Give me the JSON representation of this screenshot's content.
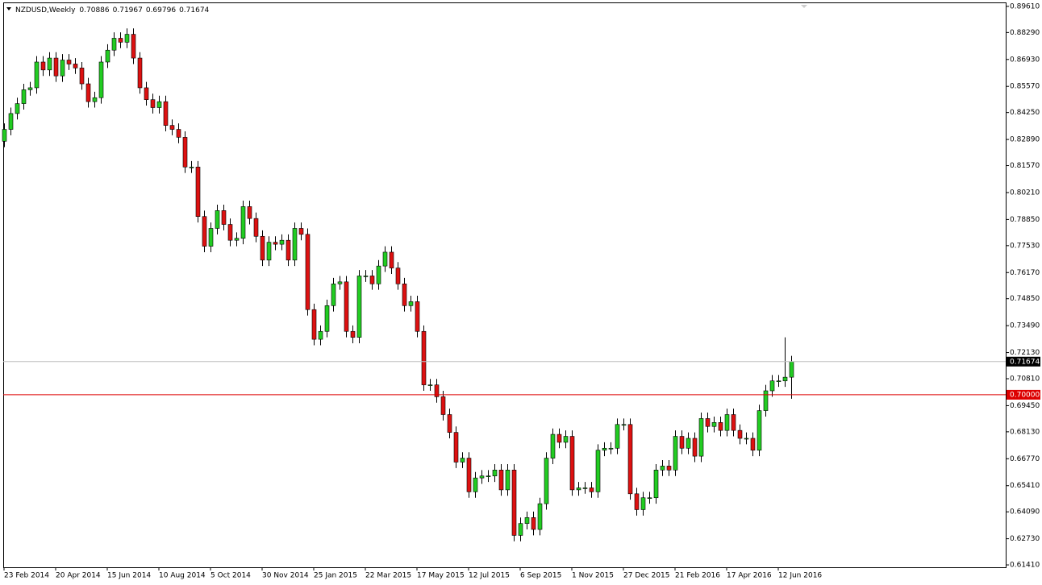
{
  "chart_data": {
    "type": "candlestick",
    "title": "NZDUSD,Weekly",
    "categories": [
      "23 Feb 2014",
      null,
      null,
      null,
      null,
      null,
      null,
      null,
      "20 Apr 2014",
      null,
      null,
      null,
      null,
      null,
      null,
      null,
      "15 Jun 2014",
      null,
      null,
      null,
      null,
      null,
      null,
      null,
      "10 Aug 2014",
      null,
      null,
      null,
      null,
      null,
      null,
      null,
      "5 Oct 2014",
      null,
      null,
      null,
      null,
      null,
      null,
      null,
      "30 Nov 2014",
      null,
      null,
      null,
      null,
      null,
      null,
      null,
      "25 Jan 2015",
      null,
      null,
      null,
      null,
      null,
      null,
      null,
      "22 Mar 2015",
      null,
      null,
      null,
      null,
      null,
      null,
      null,
      "17 May 2015",
      null,
      null,
      null,
      null,
      null,
      null,
      null,
      "12 Jul 2015",
      null,
      null,
      null,
      null,
      null,
      null,
      null,
      "6 Sep 2015",
      null,
      null,
      null,
      null,
      null,
      null,
      null,
      "1 Nov 2015",
      null,
      null,
      null,
      null,
      null,
      null,
      null,
      "27 Dec 2015",
      null,
      null,
      null,
      null,
      null,
      null,
      null,
      "21 Feb 2016",
      null,
      null,
      null,
      null,
      null,
      null,
      null,
      "17 Apr 2016",
      null,
      null,
      null,
      null,
      null,
      null,
      null,
      "12 Jun 2016",
      null,
      null
    ],
    "open": [
      0.828,
      0.834,
      0.842,
      0.847,
      0.854,
      0.855,
      0.868,
      0.864,
      0.87,
      0.861,
      0.869,
      0.867,
      0.865,
      0.857,
      0.848,
      0.85,
      0.868,
      0.874,
      0.88,
      0.878,
      0.882,
      0.87,
      0.855,
      0.849,
      0.845,
      0.848,
      0.836,
      0.834,
      0.83,
      0.815,
      0.815,
      0.79,
      0.775,
      0.784,
      0.793,
      0.786,
      0.778,
      0.779,
      0.795,
      0.789,
      0.78,
      0.768,
      0.777,
      0.776,
      0.778,
      0.768,
      0.784,
      0.781,
      0.743,
      0.728,
      0.732,
      0.745,
      0.756,
      0.757,
      0.732,
      0.729,
      0.76,
      0.76,
      0.756,
      0.765,
      0.772,
      0.764,
      0.756,
      0.745,
      0.747,
      0.732,
      0.705,
      0.705,
      0.699,
      0.69,
      0.681,
      0.666,
      0.668,
      0.651,
      0.658,
      0.659,
      0.659,
      0.662,
      0.652,
      0.662,
      0.629,
      0.635,
      0.638,
      0.632,
      0.645,
      0.668,
      0.68,
      0.676,
      0.679,
      0.652,
      0.653,
      0.653,
      0.651,
      0.672,
      0.673,
      0.673,
      0.685,
      0.685,
      0.65,
      0.642,
      0.648,
      0.648,
      0.662,
      0.664,
      0.662,
      0.679,
      0.673,
      0.678,
      0.669,
      0.688,
      0.684,
      0.686,
      0.682,
      0.69,
      0.682,
      0.678,
      0.678,
      0.672,
      0.692,
      0.702,
      0.707,
      0.707,
      0.70886
    ],
    "high": [
      0.837,
      0.845,
      0.85,
      0.857,
      0.858,
      0.871,
      0.871,
      0.873,
      0.873,
      0.872,
      0.872,
      0.87,
      0.868,
      0.86,
      0.853,
      0.871,
      0.877,
      0.883,
      0.883,
      0.885,
      0.885,
      0.873,
      0.858,
      0.852,
      0.851,
      0.851,
      0.839,
      0.837,
      0.833,
      0.818,
      0.818,
      0.793,
      0.787,
      0.796,
      0.796,
      0.789,
      0.782,
      0.798,
      0.798,
      0.792,
      0.783,
      0.78,
      0.78,
      0.781,
      0.781,
      0.787,
      0.787,
      0.784,
      0.746,
      0.735,
      0.748,
      0.759,
      0.76,
      0.76,
      0.735,
      0.763,
      0.763,
      0.763,
      0.768,
      0.775,
      0.775,
      0.767,
      0.759,
      0.75,
      0.75,
      0.735,
      0.708,
      0.708,
      0.702,
      0.693,
      0.684,
      0.671,
      0.671,
      0.661,
      0.662,
      0.662,
      0.665,
      0.665,
      0.665,
      0.665,
      0.638,
      0.641,
      0.641,
      0.648,
      0.671,
      0.683,
      0.683,
      0.682,
      0.682,
      0.656,
      0.656,
      0.656,
      0.675,
      0.676,
      0.676,
      0.688,
      0.688,
      0.688,
      0.653,
      0.651,
      0.651,
      0.665,
      0.667,
      0.667,
      0.682,
      0.682,
      0.681,
      0.681,
      0.691,
      0.691,
      0.689,
      0.689,
      0.693,
      0.693,
      0.685,
      0.681,
      0.681,
      0.695,
      0.705,
      0.71,
      0.71,
      0.729,
      0.71967
    ],
    "low": [
      0.825,
      0.831,
      0.839,
      0.844,
      0.851,
      0.852,
      0.861,
      0.861,
      0.858,
      0.858,
      0.864,
      0.862,
      0.854,
      0.845,
      0.845,
      0.847,
      0.865,
      0.871,
      0.875,
      0.875,
      0.867,
      0.852,
      0.846,
      0.842,
      0.842,
      0.833,
      0.831,
      0.827,
      0.812,
      0.812,
      0.787,
      0.772,
      0.772,
      0.781,
      0.783,
      0.775,
      0.775,
      0.776,
      0.786,
      0.777,
      0.765,
      0.765,
      0.773,
      0.773,
      0.765,
      0.765,
      0.778,
      0.74,
      0.725,
      0.725,
      0.729,
      0.742,
      0.753,
      0.729,
      0.726,
      0.726,
      0.757,
      0.753,
      0.753,
      0.762,
      0.761,
      0.753,
      0.742,
      0.742,
      0.729,
      0.702,
      0.702,
      0.696,
      0.687,
      0.678,
      0.663,
      0.663,
      0.648,
      0.648,
      0.655,
      0.656,
      0.656,
      0.649,
      0.649,
      0.626,
      0.626,
      0.632,
      0.629,
      0.629,
      0.642,
      0.665,
      0.673,
      0.673,
      0.649,
      0.649,
      0.65,
      0.648,
      0.648,
      0.669,
      0.67,
      0.67,
      0.682,
      0.647,
      0.639,
      0.639,
      0.645,
      0.645,
      0.659,
      0.659,
      0.659,
      0.67,
      0.67,
      0.666,
      0.666,
      0.681,
      0.681,
      0.679,
      0.679,
      0.679,
      0.675,
      0.675,
      0.669,
      0.669,
      0.689,
      0.699,
      0.704,
      0.704,
      0.69796
    ],
    "close": [
      0.834,
      0.842,
      0.847,
      0.854,
      0.855,
      0.868,
      0.864,
      0.87,
      0.861,
      0.869,
      0.867,
      0.865,
      0.857,
      0.848,
      0.85,
      0.868,
      0.874,
      0.88,
      0.878,
      0.882,
      0.87,
      0.855,
      0.849,
      0.845,
      0.848,
      0.836,
      0.834,
      0.83,
      0.815,
      0.815,
      0.79,
      0.775,
      0.784,
      0.793,
      0.786,
      0.778,
      0.779,
      0.795,
      0.789,
      0.78,
      0.768,
      0.777,
      0.776,
      0.778,
      0.768,
      0.784,
      0.781,
      0.743,
      0.728,
      0.732,
      0.745,
      0.756,
      0.757,
      0.732,
      0.729,
      0.76,
      0.76,
      0.756,
      0.765,
      0.772,
      0.764,
      0.756,
      0.745,
      0.747,
      0.732,
      0.705,
      0.705,
      0.699,
      0.69,
      0.681,
      0.666,
      0.668,
      0.651,
      0.658,
      0.659,
      0.659,
      0.662,
      0.652,
      0.662,
      0.629,
      0.635,
      0.638,
      0.632,
      0.645,
      0.668,
      0.68,
      0.676,
      0.679,
      0.652,
      0.653,
      0.653,
      0.651,
      0.672,
      0.673,
      0.673,
      0.685,
      0.685,
      0.65,
      0.642,
      0.648,
      0.648,
      0.662,
      0.664,
      0.662,
      0.679,
      0.673,
      0.678,
      0.669,
      0.688,
      0.684,
      0.686,
      0.682,
      0.69,
      0.682,
      0.678,
      0.678,
      0.672,
      0.692,
      0.702,
      0.707,
      0.707,
      0.70886,
      0.71674
    ],
    "bull_color": "#22cc22",
    "bear_color": "#dd1111",
    "outline_color": "#000000",
    "ylim": [
      0.6129,
      0.8981
    ],
    "yticks": [
      {
        "value": 0.8961,
        "label": "0.89610"
      },
      {
        "value": 0.8829,
        "label": "0.88290"
      },
      {
        "value": 0.8693,
        "label": "0.86930"
      },
      {
        "value": 0.8557,
        "label": "0.85570"
      },
      {
        "value": 0.8425,
        "label": "0.84250"
      },
      {
        "value": 0.8289,
        "label": "0.82890"
      },
      {
        "value": 0.8157,
        "label": "0.81570"
      },
      {
        "value": 0.8021,
        "label": "0.80210"
      },
      {
        "value": 0.7885,
        "label": "0.78850"
      },
      {
        "value": 0.7753,
        "label": "0.77530"
      },
      {
        "value": 0.7617,
        "label": "0.76170"
      },
      {
        "value": 0.7485,
        "label": "0.74850"
      },
      {
        "value": 0.7349,
        "label": "0.73490"
      },
      {
        "value": 0.7213,
        "label": "0.72130"
      },
      {
        "value": 0.7081,
        "label": "0.70810"
      },
      {
        "value": 0.6945,
        "label": "0.69450"
      },
      {
        "value": 0.6813,
        "label": "0.68130"
      },
      {
        "value": 0.6677,
        "label": "0.66770"
      },
      {
        "value": 0.6541,
        "label": "0.65410"
      },
      {
        "value": 0.6409,
        "label": "0.64090"
      },
      {
        "value": 0.6273,
        "label": "0.62730"
      },
      {
        "value": 0.6141,
        "label": "0.61410"
      }
    ],
    "hline": {
      "value": 0.7,
      "label": "0.70000",
      "color": "#dd0000"
    },
    "price_line_color": "#c0c0c0",
    "grid": false
  }
}
